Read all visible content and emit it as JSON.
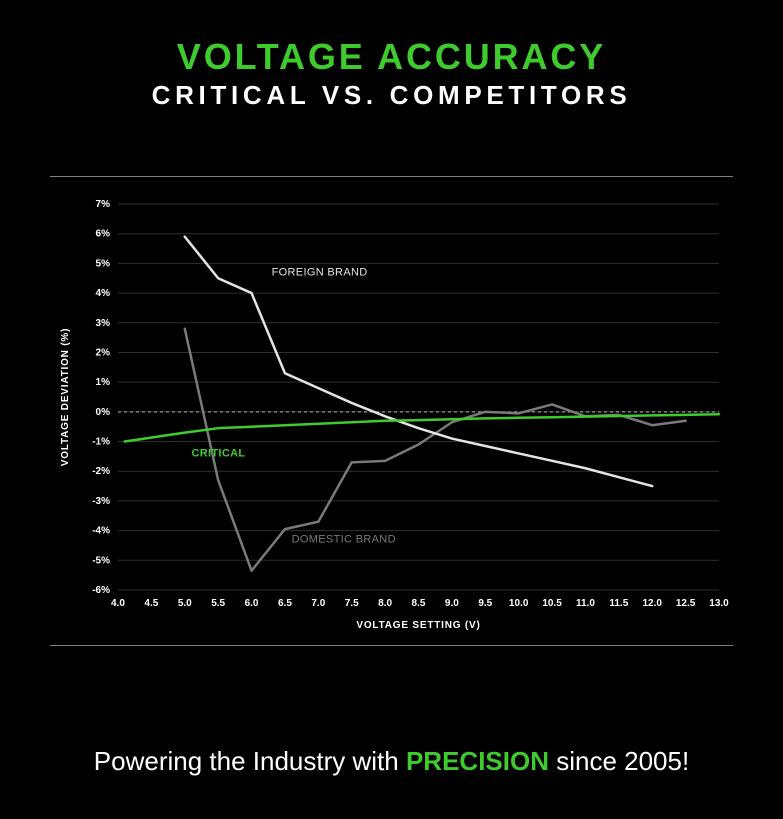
{
  "title_line1": "VOLTAGE ACCURACY",
  "title_line2": "CRITICAL VS. COMPETITORS",
  "title1_color": "#3fcb2e",
  "title2_color": "#ffffff",
  "title1_fontsize": 36,
  "title2_fontsize": 26,
  "background_color": "#000000",
  "chart": {
    "type": "line",
    "plot_bg": "#000000",
    "grid_color": "#2f2f2f",
    "axis_color": "#ffffff",
    "zero_line_color": "#b8b8b8",
    "zero_line_dash": "3,3",
    "xlabel": "VOLTAGE SETTING (V)",
    "ylabel": "VOLTAGE DEVIATION (%)",
    "label_color": "#ffffff",
    "label_fontsize": 10,
    "tick_fontsize": 10,
    "xlim": [
      4.0,
      13.0
    ],
    "ylim": [
      -6,
      7
    ],
    "xtick_step": 0.5,
    "ytick_step": 1,
    "y_tick_suffix": "%",
    "x_tick_decimals": 1,
    "line_width": 2.5,
    "series": [
      {
        "name": "CRITICAL",
        "label": "CRITICAL",
        "color": "#3fcb2e",
        "label_x": 5.1,
        "label_y": -1.5,
        "label_fontsize": 11,
        "label_weight": "700",
        "points": [
          [
            4.1,
            -1.0
          ],
          [
            5.0,
            -0.7
          ],
          [
            5.5,
            -0.55
          ],
          [
            6.0,
            -0.5
          ],
          [
            6.5,
            -0.45
          ],
          [
            7.0,
            -0.4
          ],
          [
            7.5,
            -0.35
          ],
          [
            8.0,
            -0.3
          ],
          [
            8.5,
            -0.28
          ],
          [
            9.0,
            -0.25
          ],
          [
            9.5,
            -0.22
          ],
          [
            10.0,
            -0.2
          ],
          [
            10.5,
            -0.18
          ],
          [
            11.0,
            -0.16
          ],
          [
            11.5,
            -0.14
          ],
          [
            12.0,
            -0.12
          ],
          [
            12.5,
            -0.1
          ],
          [
            13.0,
            -0.08
          ]
        ]
      },
      {
        "name": "FOREIGN BRAND",
        "label": "FOREIGN BRAND",
        "color": "#e4e4e4",
        "label_x": 6.3,
        "label_y": 4.6,
        "label_fontsize": 11,
        "label_weight": "500",
        "points": [
          [
            5.0,
            5.9
          ],
          [
            5.5,
            4.5
          ],
          [
            6.0,
            4.0
          ],
          [
            6.5,
            1.3
          ],
          [
            7.0,
            0.8
          ],
          [
            7.5,
            0.3
          ],
          [
            8.0,
            -0.15
          ],
          [
            8.5,
            -0.55
          ],
          [
            9.0,
            -0.9
          ],
          [
            9.5,
            -1.15
          ],
          [
            10.0,
            -1.4
          ],
          [
            10.5,
            -1.65
          ],
          [
            11.0,
            -1.9
          ],
          [
            11.5,
            -2.2
          ],
          [
            12.0,
            -2.5
          ]
        ]
      },
      {
        "name": "DOMESTIC BRAND",
        "label": "DOMESTIC BRAND",
        "color": "#7a7a7a",
        "label_x": 6.6,
        "label_y": -4.4,
        "label_fontsize": 11,
        "label_weight": "500",
        "points": [
          [
            5.0,
            2.8
          ],
          [
            5.5,
            -2.3
          ],
          [
            6.0,
            -5.35
          ],
          [
            6.5,
            -3.95
          ],
          [
            7.0,
            -3.7
          ],
          [
            7.5,
            -1.7
          ],
          [
            8.0,
            -1.65
          ],
          [
            8.5,
            -1.1
          ],
          [
            9.0,
            -0.35
          ],
          [
            9.5,
            0.0
          ],
          [
            10.0,
            -0.05
          ],
          [
            10.5,
            0.25
          ],
          [
            11.0,
            -0.15
          ],
          [
            11.5,
            -0.1
          ],
          [
            12.0,
            -0.45
          ],
          [
            12.5,
            -0.3
          ]
        ]
      }
    ]
  },
  "tagline": {
    "pre": "Powering the Industry with ",
    "highlight": "PRECISION",
    "post": " since 2005!",
    "color": "#ffffff",
    "highlight_color": "#3fcb2e",
    "fontsize": 26
  }
}
